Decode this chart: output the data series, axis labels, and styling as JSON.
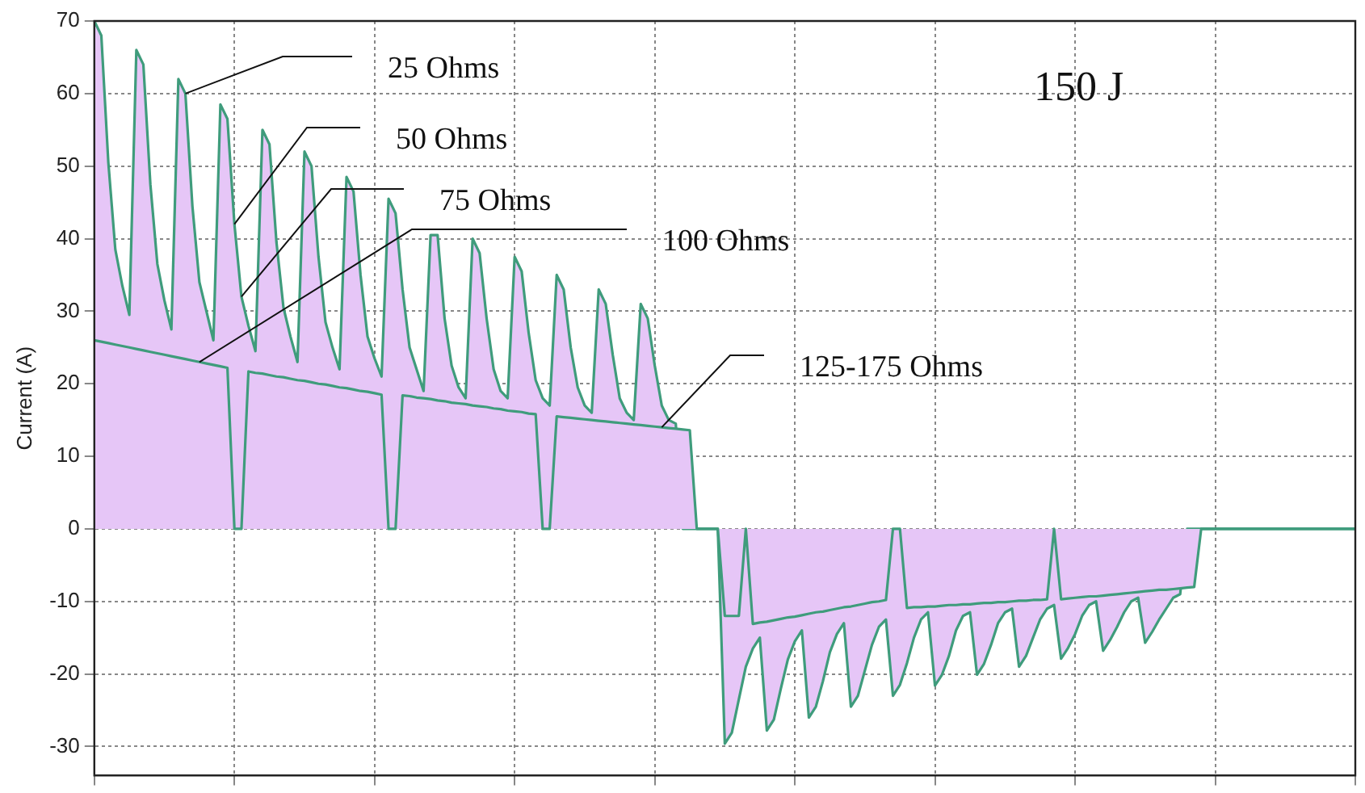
{
  "chart_data": {
    "type": "area",
    "ylabel": "Current (A)",
    "tick_labels": "y",
    "grid": true,
    "legend": false,
    "ylim": [
      -34,
      70
    ],
    "yticks": [
      -30,
      -20,
      -10,
      0,
      10,
      20,
      30,
      40,
      50,
      60,
      70
    ],
    "annotations": [
      "25 Ohms",
      "50 Ohms",
      "75 Ohms",
      "100 Ohms",
      "125-175 Ohms",
      "150 J"
    ],
    "categories": [
      null,
      null,
      null,
      null,
      null,
      null,
      null,
      null,
      null,
      null,
      null,
      null,
      null,
      null,
      null,
      null,
      null,
      null,
      null,
      null,
      null,
      null,
      null,
      null,
      null,
      null,
      null,
      null,
      null,
      null,
      null,
      null,
      null,
      null,
      null,
      null,
      null,
      null,
      null,
      null,
      null,
      null,
      null,
      null,
      null,
      null,
      null,
      null,
      null,
      null,
      null,
      null,
      null,
      null,
      null,
      null,
      null,
      null,
      null,
      null,
      null,
      null,
      null,
      null,
      null,
      null,
      null,
      null,
      null,
      null,
      null,
      null,
      null,
      null,
      null,
      null,
      null,
      null,
      null,
      null,
      null,
      null,
      null,
      null,
      null,
      null,
      null,
      null,
      null,
      null,
      null,
      null,
      null,
      null,
      null,
      null,
      null,
      null,
      null,
      null,
      null,
      null,
      null,
      null,
      null,
      null,
      null,
      null,
      null,
      null,
      null,
      null,
      null,
      null,
      null,
      null,
      null,
      null,
      null,
      null,
      null,
      null,
      null,
      null,
      null,
      null,
      null,
      null,
      null,
      null,
      null,
      null,
      null,
      null,
      null,
      null,
      null,
      null,
      null,
      null,
      null,
      null,
      null,
      null,
      null,
      null,
      null,
      null,
      null,
      null,
      null,
      null,
      null,
      null,
      null,
      null,
      null,
      null,
      null,
      null,
      null,
      null,
      null,
      null,
      null,
      null,
      null,
      null,
      null,
      null,
      null,
      null,
      null,
      null,
      null,
      null,
      null,
      null,
      null,
      null,
      null
    ],
    "series": [
      {
        "color": "#e6c6f7",
        "values": [
          26,
          25.8,
          25.6,
          25.4,
          25.2,
          25,
          24.8,
          24.6,
          24.4,
          24.2,
          24,
          23.8,
          23.6,
          23.4,
          23.2,
          23,
          22.8,
          22.6,
          22.4,
          22.2,
          0,
          0,
          21.7,
          21.5,
          21.4,
          21.2,
          21.0,
          20.9,
          20.7,
          20.5,
          20.4,
          20.2,
          20.0,
          19.9,
          19.7,
          19.5,
          19.4,
          19.2,
          19.0,
          18.9,
          18.7,
          18.5,
          0,
          0,
          18.4,
          18.3,
          18.1,
          18.0,
          17.9,
          17.7,
          17.6,
          17.4,
          17.3,
          17.2,
          17.0,
          16.9,
          16.8,
          16.6,
          16.5,
          16.3,
          16.2,
          16.1,
          15.9,
          15.8,
          0,
          0,
          15.5,
          15.4,
          15.3,
          15.2,
          15.1,
          15.0,
          14.9,
          14.8,
          14.7,
          14.6,
          14.5,
          14.4,
          14.3,
          14.2,
          14.1,
          14.0,
          13.9,
          13.8,
          13.7,
          13.6,
          0,
          0,
          0,
          0,
          -12,
          -12,
          -12,
          0,
          -13.1,
          -12.9,
          -12.8,
          -12.6,
          -12.4,
          -12.2,
          -12.1,
          -11.9,
          -11.7,
          -11.5,
          -11.4,
          -11.2,
          -11.0,
          -10.8,
          -10.7,
          -10.5,
          -10.3,
          -10.1,
          -10.0,
          -9.8,
          0,
          0,
          -10.9,
          -10.8,
          -10.8,
          -10.7,
          -10.7,
          -10.6,
          -10.5,
          -10.5,
          -10.4,
          -10.4,
          -10.3,
          -10.2,
          -10.2,
          -10.1,
          -10.1,
          -10.0,
          -9.9,
          -9.9,
          -9.8,
          -9.8,
          -9.7,
          0,
          -9.7,
          -9.6,
          -9.5,
          -9.4,
          -9.3,
          -9.3,
          -9.2,
          -9.1,
          -9.0,
          -8.9,
          -8.8,
          -8.7,
          -8.6,
          -8.5,
          -8.4,
          -8.4,
          -8.3,
          -8.2,
          -8.1,
          -8.0,
          0,
          0,
          0,
          0,
          0,
          0,
          0,
          0,
          0,
          0,
          0,
          0,
          0,
          0,
          0,
          0,
          0,
          0,
          0,
          0,
          0,
          0,
          0
        ]
      },
      {
        "color": "#e6c6f7",
        "values": [
          70,
          68,
          50.5,
          38.5,
          33.5,
          29.5,
          66,
          64,
          47.5,
          36.5,
          31.5,
          27.5,
          62,
          60,
          44.5,
          34,
          30,
          26,
          58.5,
          56.5,
          42,
          32,
          28,
          24.5,
          55,
          53,
          39.5,
          30.5,
          26.5,
          23,
          52,
          50,
          37.5,
          28.5,
          25,
          22,
          48.5,
          46.5,
          35,
          26.5,
          23.5,
          21,
          45.5,
          43.5,
          33,
          25,
          22,
          19,
          40.5,
          40.5,
          29,
          22.5,
          19.5,
          18,
          40,
          38,
          29,
          22,
          19,
          18,
          37.5,
          35.5,
          27,
          20.5,
          18,
          17,
          35,
          33,
          25,
          19.5,
          17,
          16,
          33,
          31,
          24,
          18,
          16,
          15,
          31,
          29,
          22.5,
          17,
          15,
          14.5,
          0,
          0,
          0,
          0,
          0,
          0,
          -29.6,
          -28.1,
          -23.5,
          -19,
          -16.5,
          -15,
          -27.8,
          -26.3,
          -22,
          -18,
          -15.5,
          -14,
          -26,
          -24.5,
          -21,
          -17,
          -14.5,
          -13,
          -24.5,
          -23,
          -19.5,
          -16,
          -13.5,
          -12.5,
          -23,
          -21.5,
          -18.5,
          -15,
          -12.5,
          -11.5,
          -21.6,
          -20.1,
          -17.5,
          -14,
          -12,
          -11.5,
          -20.1,
          -18.6,
          -16,
          -13,
          -11.5,
          -11,
          -19,
          -17.5,
          -15,
          -12.5,
          -11,
          -10.5,
          -17.9,
          -16.4,
          -14.5,
          -12,
          -10.5,
          -10,
          -16.8,
          -15.3,
          -13.5,
          -11.5,
          -10,
          -9.5,
          -15.7,
          -14.2,
          -12.5,
          -11,
          -9.5,
          -9,
          0,
          0,
          0,
          0,
          0,
          0,
          0,
          0,
          0,
          0,
          0,
          0,
          0,
          0,
          0,
          0,
          0,
          0,
          0,
          0,
          0,
          0,
          0,
          0,
          0
        ]
      }
    ]
  }
}
